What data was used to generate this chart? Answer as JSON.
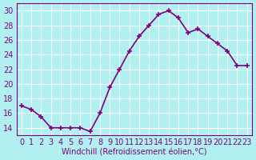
{
  "x": [
    0,
    1,
    2,
    3,
    4,
    5,
    6,
    7,
    8,
    9,
    10,
    11,
    12,
    13,
    14,
    15,
    16,
    17,
    18,
    19,
    20,
    21,
    22,
    23
  ],
  "y": [
    17,
    16.5,
    15.5,
    14,
    14,
    14,
    14,
    13.5,
    16,
    19.5,
    22,
    24.5,
    26.5,
    28,
    29.5,
    30,
    29,
    27,
    27.5,
    26.5,
    25.5,
    24.5,
    22.5,
    22.5
  ],
  "line_color": "#800080",
  "marker_color": "#800080",
  "bg_color": "#b0f0f0",
  "grid_color": "#ffffff",
  "xlabel": "Windchill (Refroidissement éolien,°C)",
  "ylim_min": 13,
  "ylim_max": 31,
  "xlim_min": -0.5,
  "xlim_max": 23.5,
  "yticks": [
    14,
    16,
    18,
    20,
    22,
    24,
    26,
    28,
    30
  ],
  "xticks": [
    0,
    1,
    2,
    3,
    4,
    5,
    6,
    7,
    8,
    9,
    10,
    11,
    12,
    13,
    14,
    15,
    16,
    17,
    18,
    19,
    20,
    21,
    22,
    23
  ],
  "marker_size": 4,
  "line_width": 1.2,
  "font_size": 7
}
